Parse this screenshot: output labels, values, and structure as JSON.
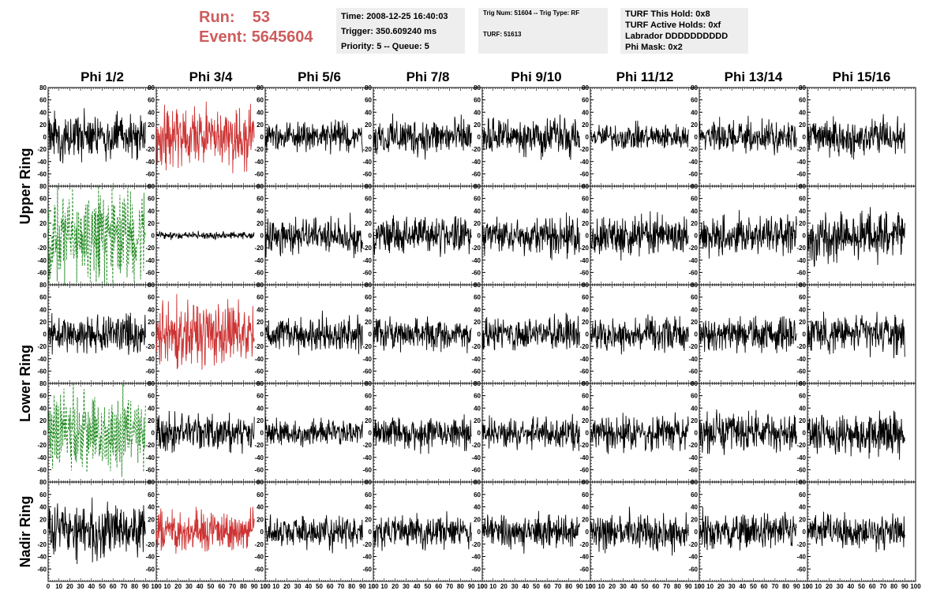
{
  "header": {
    "run_label": "Run:",
    "run_value": "53",
    "event_label": "Event:",
    "event_value": "5645604",
    "colors": {
      "run_event": "#cd5c5c",
      "info_bg": "#eeeeee"
    }
  },
  "info_time": {
    "time": "Time: 2008-12-25 16:40:03",
    "trigger": "Trigger: 350.609240 ms",
    "priority": "Priority: 5 -- Queue: 5"
  },
  "info_trig": {
    "trig": "Trig Num: 51604 -- Trig Type: RF",
    "turf": "TURF: 51613"
  },
  "info_turf": {
    "hold": "TURF This Hold: 0x8",
    "active": "TURF Active Holds: 0xf",
    "labrador": "Labrador DDDDDDDDDD",
    "phimask": "Phi Mask: 0x2"
  },
  "chart_data": {
    "type": "line",
    "phi_labels": [
      "Phi 1/2",
      "Phi 3/4",
      "Phi 5/6",
      "Phi 7/8",
      "Phi 9/10",
      "Phi 11/12",
      "Phi 13/14",
      "Phi 15/16"
    ],
    "ring_labels": [
      {
        "text": "Upper Ring",
        "rows": [
          0,
          1
        ]
      },
      {
        "text": "Lower Ring",
        "rows": [
          2,
          3
        ]
      },
      {
        "text": "Nadir Ring",
        "rows": [
          4,
          4
        ]
      }
    ],
    "xlim": [
      0,
      100
    ],
    "ylim": [
      -80,
      80
    ],
    "yticks": [
      -60,
      -40,
      -20,
      0,
      20,
      40,
      60,
      80
    ],
    "xticks": [
      0,
      10,
      20,
      30,
      40,
      50,
      60,
      70,
      80,
      90,
      100
    ],
    "trace_x_range": [
      0,
      90
    ],
    "trace_points": 260,
    "colors": {
      "normal": "#000000",
      "triggered": "#cd3333",
      "masked": "#228b22"
    },
    "panels": [
      [
        {
          "c": "normal",
          "a": 17,
          "s": 1
        },
        {
          "c": "triggered",
          "a": 24,
          "s": 2
        },
        {
          "c": "normal",
          "a": 12,
          "s": 3
        },
        {
          "c": "normal",
          "a": 15,
          "s": 4
        },
        {
          "c": "normal",
          "a": 14,
          "s": 5
        },
        {
          "c": "normal",
          "a": 10,
          "s": 6
        },
        {
          "c": "normal",
          "a": 12,
          "s": 7
        },
        {
          "c": "normal",
          "a": 15,
          "s": 8
        }
      ],
      [
        {
          "c": "masked",
          "a": 38,
          "s": 9,
          "d": true
        },
        {
          "c": "normal",
          "a": 3,
          "s": 10
        },
        {
          "c": "normal",
          "a": 14,
          "s": 11
        },
        {
          "c": "normal",
          "a": 14,
          "s": 12
        },
        {
          "c": "normal",
          "a": 15,
          "s": 13
        },
        {
          "c": "normal",
          "a": 16,
          "s": 14
        },
        {
          "c": "normal",
          "a": 15,
          "s": 15
        },
        {
          "c": "normal",
          "a": 20,
          "s": 16
        }
      ],
      [
        {
          "c": "normal",
          "a": 15,
          "s": 17
        },
        {
          "c": "triggered",
          "a": 25,
          "s": 18
        },
        {
          "c": "normal",
          "a": 14,
          "s": 19
        },
        {
          "c": "normal",
          "a": 12,
          "s": 20
        },
        {
          "c": "normal",
          "a": 13,
          "s": 21
        },
        {
          "c": "normal",
          "a": 12,
          "s": 22
        },
        {
          "c": "normal",
          "a": 14,
          "s": 23
        },
        {
          "c": "normal",
          "a": 15,
          "s": 24
        }
      ],
      [
        {
          "c": "masked",
          "a": 30,
          "s": 25,
          "d": true
        },
        {
          "c": "normal",
          "a": 15,
          "s": 26
        },
        {
          "c": "normal",
          "a": 10,
          "s": 27
        },
        {
          "c": "normal",
          "a": 13,
          "s": 28
        },
        {
          "c": "normal",
          "a": 12,
          "s": 29
        },
        {
          "c": "normal",
          "a": 13,
          "s": 30
        },
        {
          "c": "normal",
          "a": 15,
          "s": 31
        },
        {
          "c": "normal",
          "a": 16,
          "s": 32
        }
      ],
      [
        {
          "c": "normal",
          "a": 20,
          "s": 33
        },
        {
          "c": "triggered",
          "a": 15,
          "s": 34
        },
        {
          "c": "normal",
          "a": 12,
          "s": 35
        },
        {
          "c": "normal",
          "a": 12,
          "s": 36
        },
        {
          "c": "normal",
          "a": 13,
          "s": 37
        },
        {
          "c": "normal",
          "a": 14,
          "s": 38
        },
        {
          "c": "normal",
          "a": 14,
          "s": 39
        },
        {
          "c": "normal",
          "a": 12,
          "s": 40
        }
      ]
    ]
  }
}
